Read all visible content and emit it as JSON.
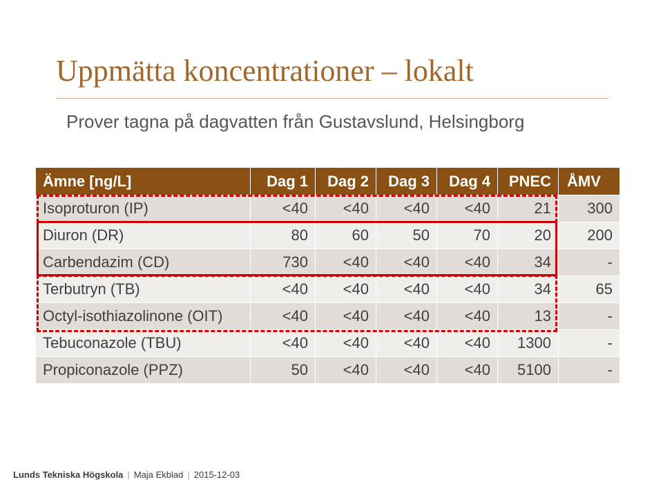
{
  "slide": {
    "title": "Uppmätta koncentrationer – lokalt",
    "subtitle": "Prover tagna på dagvatten från Gustavslund, Helsingborg"
  },
  "table": {
    "headers": [
      "Ämne [ng/L]",
      "Dag 1",
      "Dag 2",
      "Dag 3",
      "Dag 4",
      "PNEC",
      "ÅMV"
    ],
    "rows": [
      [
        "Isoproturon (IP)",
        "<40",
        "<40",
        "<40",
        "<40",
        "21",
        "300"
      ],
      [
        "Diuron (DR)",
        "80",
        "60",
        "50",
        "70",
        "20",
        "200"
      ],
      [
        "Carbendazim (CD)",
        "730",
        "<40",
        "<40",
        "<40",
        "34",
        "-"
      ],
      [
        "Terbutryn (TB)",
        "<40",
        "<40",
        "<40",
        "<40",
        "34",
        "65"
      ],
      [
        "Octyl-isothiazolinone (OIT)",
        "<40",
        "<40",
        "<40",
        "<40",
        "13",
        "-"
      ],
      [
        "Tebuconazole (TBU)",
        "<40",
        "<40",
        "<40",
        "<40",
        "1300",
        "-"
      ],
      [
        "Propiconazole (PPZ)",
        "50",
        "<40",
        "<40",
        "<40",
        "5100",
        "-"
      ]
    ]
  },
  "footer": {
    "organization": "Lunds Tekniska Högskola",
    "author": "Maja Ekblad",
    "date": "2015-12-03"
  },
  "colors": {
    "title": "#a0662a",
    "header_bg": "#8a4f13",
    "row_odd": "#e1dcd8",
    "row_even": "#f0eeeb",
    "highlight": "#d10000"
  }
}
